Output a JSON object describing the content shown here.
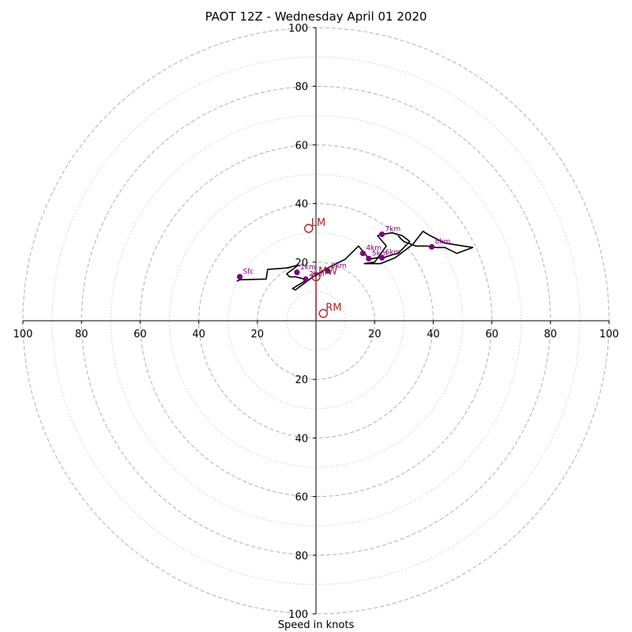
{
  "chart_data": {
    "type": "hodograph",
    "title": "PAOT 12Z - Wednesday April 01 2020",
    "xlabel": "Speed in knots",
    "units": "knots",
    "rmax": 100,
    "major_rings": [
      20,
      40,
      60,
      80,
      100
    ],
    "minor_rings": [
      10,
      30,
      50,
      70,
      90
    ],
    "tick_labels": [
      "100",
      "80",
      "60",
      "40",
      "20",
      "20",
      "40",
      "60",
      "80",
      "100"
    ],
    "tick_values": [
      -100,
      -80,
      -60,
      -40,
      -20,
      20,
      40,
      60,
      80,
      100
    ],
    "y_tick_labels_up": [
      "20",
      "40",
      "60",
      "80",
      "100"
    ],
    "y_tick_labels_down": [
      "20",
      "40",
      "60",
      "80",
      "100"
    ],
    "trace": [
      [
        -27,
        13.5
      ],
      [
        -26,
        14
      ],
      [
        -17,
        14.2
      ],
      [
        -16.5,
        17.5
      ],
      [
        -10,
        18
      ],
      [
        -6,
        19
      ],
      [
        -10,
        16
      ],
      [
        -9,
        15
      ],
      [
        -7,
        15
      ],
      [
        -3,
        14
      ],
      [
        -8,
        11
      ],
      [
        -7,
        10.5
      ],
      [
        -1,
        15
      ],
      [
        4,
        18
      ],
      [
        10,
        21
      ],
      [
        14.5,
        25.5
      ],
      [
        17,
        22.5
      ],
      [
        18,
        21
      ],
      [
        21,
        21.5
      ],
      [
        23,
        21.5
      ],
      [
        26,
        22.5
      ],
      [
        28,
        23
      ],
      [
        30,
        25
      ],
      [
        32,
        27
      ],
      [
        29.5,
        29
      ],
      [
        26,
        30
      ],
      [
        22.5,
        29.5
      ],
      [
        21,
        29
      ],
      [
        24,
        25.5
      ],
      [
        20,
        20
      ],
      [
        16.5,
        19.5
      ],
      [
        20,
        19.5
      ],
      [
        22,
        19.5
      ],
      [
        27,
        21.5
      ],
      [
        33,
        26
      ],
      [
        36.5,
        30.5
      ],
      [
        39,
        29
      ],
      [
        44,
        26.5
      ],
      [
        53.5,
        25
      ],
      [
        48,
        23
      ],
      [
        44,
        25
      ],
      [
        41,
        25
      ],
      [
        38,
        25.5
      ],
      [
        34,
        25.5
      ],
      [
        30,
        27
      ],
      [
        28,
        29
      ]
    ],
    "height_points": [
      {
        "label": "Sfc",
        "u": -26,
        "v": 15
      },
      {
        "label": "1km",
        "u": -6.5,
        "v": 16.5
      },
      {
        "label": "2km",
        "u": -3.5,
        "v": 14.2
      },
      {
        "label": "3km",
        "u": 4,
        "v": 17
      },
      {
        "label": "4km",
        "u": 16,
        "v": 23
      },
      {
        "label": "5km",
        "u": 18,
        "v": 21.2
      },
      {
        "label": "6km",
        "u": 22.5,
        "v": 21.5
      },
      {
        "label": "7km",
        "u": 22.5,
        "v": 29.5
      },
      {
        "label": "8km",
        "u": 39.5,
        "v": 25.2
      }
    ],
    "storm_motion": [
      {
        "label": "LM",
        "u": -2.5,
        "v": 31.5
      },
      {
        "label": "MW",
        "u": 0,
        "v": 15
      },
      {
        "label": "RM",
        "u": 2.5,
        "v": 2.5
      }
    ]
  }
}
